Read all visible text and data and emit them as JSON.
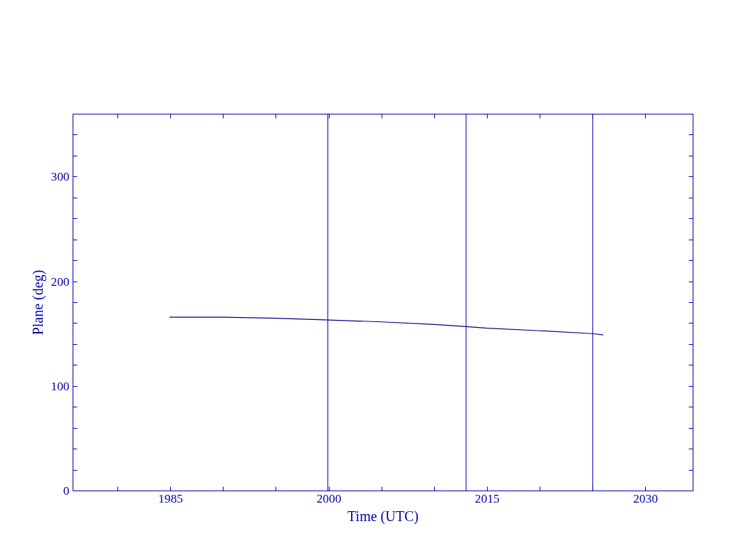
{
  "chart_data": {
    "type": "line",
    "xlabel": "Time (UTC)",
    "ylabel": "Plane (deg)",
    "x": [
      1984.9,
      1990,
      1995,
      2000,
      2005,
      2010,
      2013,
      2015,
      2020,
      2025,
      2026
    ],
    "series": [
      {
        "color": "#000080",
        "values": [
          166,
          166,
          165,
          163.3,
          161.5,
          159,
          157,
          155.5,
          153,
          150.3,
          149
        ]
      }
    ],
    "xlim": [
      1975.75,
      2034.5
    ],
    "ylim": [
      0,
      360
    ],
    "xticks": [
      {
        "value": 1980,
        "label": null
      },
      1985,
      {
        "value": 1990,
        "label": null
      },
      {
        "value": 1995,
        "label": null
      },
      2000,
      {
        "value": 2005,
        "label": null
      },
      {
        "value": 2010,
        "label": null
      },
      2015,
      {
        "value": 2020,
        "label": null
      },
      {
        "value": 2025,
        "label": null
      },
      2030
    ],
    "yticks": [
      0,
      {
        "value": 20,
        "label": null
      },
      {
        "value": 40,
        "label": null
      },
      {
        "value": 60,
        "label": null
      },
      {
        "value": 80,
        "label": null
      },
      100,
      {
        "value": 120,
        "label": null
      },
      {
        "value": 140,
        "label": null
      },
      {
        "value": 160,
        "label": null
      },
      {
        "value": 180,
        "label": null
      },
      200,
      {
        "value": 220,
        "label": null
      },
      {
        "value": 240,
        "label": null
      },
      {
        "value": 260,
        "label": null
      },
      {
        "value": 280,
        "label": null
      },
      300,
      {
        "value": 320,
        "label": null
      },
      {
        "value": 340,
        "label": null
      }
    ],
    "ref_lines": [
      {
        "axis": "x",
        "value": 1999.9,
        "color": "#0000aa"
      },
      {
        "axis": "x",
        "value": 2013.0,
        "color": "#0000aa"
      },
      {
        "axis": "x",
        "value": 2025.0,
        "color": "#0000aa"
      }
    ],
    "grid": false,
    "marker": "none",
    "line_style": "solid"
  }
}
